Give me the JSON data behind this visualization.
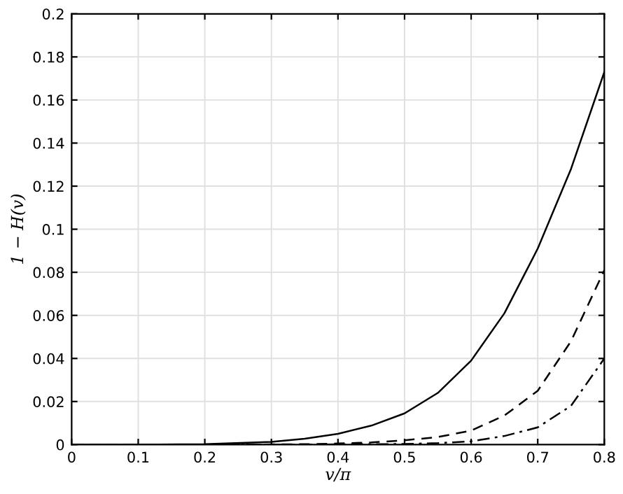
{
  "chart_data": {
    "type": "line",
    "xlabel": "v/π",
    "ylabel": "1 − H(v)",
    "xlim": [
      0,
      0.8
    ],
    "ylim": [
      0,
      0.2
    ],
    "xticks": [
      0,
      0.1,
      0.2,
      0.3,
      0.4,
      0.5,
      0.6,
      0.7,
      0.8
    ],
    "yticks": [
      0,
      0.02,
      0.04,
      0.06,
      0.08,
      0.1,
      0.12,
      0.14,
      0.16,
      0.18,
      0.2
    ],
    "grid": true,
    "x": [
      0,
      0.1,
      0.2,
      0.3,
      0.35,
      0.4,
      0.45,
      0.5,
      0.55,
      0.6,
      0.65,
      0.7,
      0.75,
      0.8
    ],
    "series": [
      {
        "color": "#000000",
        "line_style": "solid",
        "values": [
          0,
          0,
          0.0002,
          0.0013,
          0.0027,
          0.005,
          0.0088,
          0.0145,
          0.024,
          0.039,
          0.061,
          0.091,
          0.128,
          0.173
        ]
      },
      {
        "color": "#000000",
        "line_style": "dashed",
        "values": [
          0,
          0,
          0,
          0.0001,
          0.0002,
          0.0005,
          0.001,
          0.002,
          0.0035,
          0.0065,
          0.0135,
          0.025,
          0.048,
          0.081
        ]
      },
      {
        "color": "#000000",
        "line_style": "dashdot",
        "values": [
          0,
          0,
          0,
          0,
          0,
          0.0001,
          0.0002,
          0.0003,
          0.0007,
          0.0015,
          0.004,
          0.008,
          0.018,
          0.04
        ]
      }
    ]
  }
}
